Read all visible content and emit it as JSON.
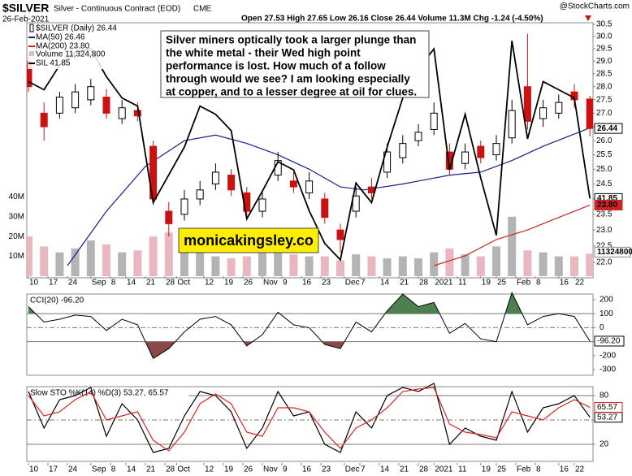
{
  "chart_data": [
    {
      "type": "candlestick",
      "title": "$SILVER",
      "subtitle": "Silver - Continuous Contract (EOD)",
      "exchange": "CME",
      "date": "26-Feb-2021",
      "quote": "Open 27.53  High 27.65  Low 26.16  Close 26.44  Volume 11.3M  Chg -1.24 (-4.50%)",
      "credit": "@StockCharts.com",
      "name": "$SILVER (Daily) 26.44",
      "last_label": "26.44",
      "log_scale": true,
      "up_color": "#000000",
      "down_color": "#cc1111",
      "x": [
        0,
        4,
        8,
        12,
        16,
        20,
        24,
        28,
        32,
        36,
        40,
        44,
        48,
        52,
        56,
        60,
        64,
        68,
        72,
        76,
        80,
        84,
        88,
        92,
        96,
        100,
        104,
        108,
        112,
        116,
        120,
        124,
        128,
        132,
        136,
        140,
        144
      ],
      "open": [
        29.0,
        27.0,
        27.0,
        27.2,
        27.5,
        27.6,
        26.8,
        27.1,
        25.8,
        23.6,
        23.5,
        24.0,
        24.5,
        24.8,
        24.2,
        23.6,
        24.8,
        24.6,
        24.2,
        24.0,
        23.0,
        23.6,
        24.4,
        24.9,
        25.4,
        26.0,
        26.4,
        25.6,
        25.2,
        25.8,
        25.5,
        26.1,
        28.0,
        26.8,
        27.0,
        27.8,
        27.53
      ],
      "high": [
        29.3,
        27.4,
        27.8,
        28.1,
        28.3,
        27.9,
        27.5,
        27.4,
        26.0,
        23.9,
        24.3,
        24.6,
        25.2,
        25.0,
        24.4,
        24.3,
        25.6,
        24.9,
        24.9,
        24.2,
        23.2,
        24.4,
        24.7,
        25.9,
        26.2,
        26.6,
        27.4,
        25.9,
        25.9,
        26.0,
        26.2,
        27.5,
        30.1,
        27.5,
        27.7,
        28.1,
        27.65
      ],
      "low": [
        27.8,
        26.0,
        26.8,
        27.0,
        27.3,
        26.8,
        26.6,
        26.7,
        23.8,
        22.8,
        23.3,
        23.8,
        24.3,
        24.1,
        23.4,
        23.4,
        24.6,
        24.2,
        24.0,
        23.2,
        22.3,
        23.4,
        24.0,
        24.7,
        25.2,
        25.8,
        26.2,
        24.8,
        25.0,
        25.2,
        25.3,
        25.9,
        26.4,
        26.5,
        26.8,
        27.2,
        26.16
      ],
      "close": [
        28.0,
        26.5,
        27.6,
        27.8,
        28.0,
        27.0,
        27.2,
        26.9,
        24.0,
        23.2,
        24.0,
        24.3,
        24.9,
        24.3,
        23.6,
        24.0,
        25.3,
        24.4,
        24.6,
        23.4,
        22.7,
        24.1,
        24.2,
        25.6,
        25.9,
        26.3,
        27.0,
        25.0,
        25.6,
        25.4,
        25.9,
        27.1,
        26.7,
        27.2,
        27.4,
        27.5,
        26.44
      ],
      "ylim": [
        22,
        30.5
      ],
      "yticks": [
        {
          "value": 22,
          "label": "22.0"
        },
        22.5,
        {
          "value": 23,
          "label": "23.0"
        },
        23.5,
        {
          "value": 24,
          "label": "24.0"
        },
        24.5,
        {
          "value": 25,
          "label": "25.0"
        },
        25.5,
        {
          "value": 26,
          "label": "26.0"
        },
        26.5,
        {
          "value": 27,
          "label": "27.0"
        },
        27.5,
        {
          "value": 28,
          "label": "28.0"
        },
        28.5,
        {
          "value": 29,
          "label": "29.0"
        },
        29.5,
        {
          "value": 30,
          "label": "30.0"
        },
        30.5
      ],
      "xticks": [
        {
          "value": 0,
          "label": "10"
        },
        {
          "value": 5,
          "label": "17"
        },
        {
          "value": 10,
          "label": "24"
        },
        {
          "value": 16,
          "label": "Sep"
        },
        {
          "value": 21,
          "label": "8"
        },
        {
          "value": 25,
          "label": "14"
        },
        {
          "value": 30,
          "label": "21"
        },
        {
          "value": 35,
          "label": "28"
        },
        {
          "value": 38,
          "label": "Oct"
        },
        {
          "value": 45,
          "label": "12"
        },
        {
          "value": 50,
          "label": "19"
        },
        {
          "value": 55,
          "label": "26"
        },
        {
          "value": 60,
          "label": "Nov"
        },
        {
          "value": 65,
          "label": "9"
        },
        {
          "value": 70,
          "label": "16"
        },
        {
          "value": 75,
          "label": "23"
        },
        {
          "value": 81,
          "label": "Dec"
        },
        {
          "value": 85,
          "label": "7"
        },
        {
          "value": 90,
          "label": "14"
        },
        {
          "value": 95,
          "label": "21"
        },
        {
          "value": 100,
          "label": "28"
        },
        {
          "value": 104,
          "label": "2021"
        },
        {
          "value": 110,
          "label": "11"
        },
        {
          "value": 116,
          "label": "19"
        },
        {
          "value": 120,
          "label": "25"
        },
        {
          "value": 125,
          "label": "Feb"
        },
        {
          "value": 130,
          "label": "8"
        },
        {
          "value": 136,
          "label": "16"
        },
        {
          "value": 140,
          "label": "22"
        }
      ],
      "overlays": [
        {
          "name": "MA(50) 26.46",
          "color": "#1c1c8c",
          "x": [
            10,
            20,
            30,
            40,
            48,
            56,
            64,
            72,
            80,
            86,
            96,
            108,
            116,
            124,
            132,
            144
          ],
          "values": [
            21.9,
            23.6,
            25.1,
            26.0,
            26.2,
            25.9,
            25.5,
            25.0,
            24.4,
            24.3,
            24.5,
            24.8,
            24.9,
            25.3,
            25.8,
            26.46
          ]
        },
        {
          "name": "MA(200) 23.80",
          "color": "#cc2222",
          "last_label": "23.80",
          "x": [
            104,
            112,
            120,
            128,
            136,
            144
          ],
          "values": [
            21.9,
            22.2,
            22.7,
            23.0,
            23.4,
            23.8
          ]
        }
      ],
      "series": [
        {
          "name": "SIL 41.85",
          "color": "#000000",
          "axis": "y2",
          "last_label": "41.85",
          "values": [
            49.0,
            48.5,
            50.0,
            50.8,
            51.0,
            49.3,
            48.0,
            47.5,
            41.6,
            43.3,
            45.0,
            47.5,
            47.0,
            46.0,
            40.6,
            42.3,
            44.1,
            43.6,
            41.1,
            39.1,
            38.1,
            42.8,
            41.6,
            45.0,
            48.0,
            49.8,
            51.0,
            43.6,
            47.0,
            43.1,
            39.6,
            51.5,
            45.5,
            49.0,
            48.5,
            48.0,
            41.85
          ]
        }
      ],
      "y2lim": [
        37,
        52.5
      ],
      "volume": {
        "name": "Volume 11,324,800",
        "last_label": "11324800",
        "up_color": "#b4b4b4",
        "down_color": "#e9b7bf",
        "values": [
          20000000,
          15000000,
          12000000,
          14000000,
          18000000,
          16000000,
          12000000,
          13000000,
          20000000,
          22000000,
          15000000,
          12000000,
          10000000,
          9000000,
          10000000,
          12000000,
          14000000,
          11000000,
          10000000,
          10000000,
          8000000,
          11000000,
          10000000,
          9000000,
          10000000,
          9000000,
          12000000,
          14000000,
          11000000,
          10000000,
          15000000,
          30000000,
          13000000,
          12000000,
          10000000,
          10000000,
          11324800
        ],
        "ylim": [
          0,
          127000000
        ],
        "yticks": [
          {
            "value": 10000000,
            "label": "10M"
          },
          {
            "value": 20000000,
            "label": "20M"
          },
          {
            "value": 30000000,
            "label": "30M"
          },
          {
            "value": 40000000,
            "label": "40M"
          }
        ]
      },
      "annotation": [
        "Silver miners optically took a larger plunge than",
        "the white metal - their Wed high point",
        "performance is lost. How much of a follow",
        "through would we see? I am looking especially",
        "at copper, and to a lesser degree at oil for clues."
      ],
      "watermark": "monicakingsley.co"
    },
    {
      "type": "line",
      "title": "CCI(20) -96.20",
      "series": [
        {
          "name": "CCI(20)",
          "color": "#000000",
          "last_label": "-96.20",
          "values": [
            150,
            40,
            60,
            90,
            80,
            -20,
            60,
            20,
            -220,
            -150,
            -30,
            60,
            80,
            20,
            -130,
            -50,
            110,
            20,
            0,
            -120,
            -150,
            40,
            -30,
            120,
            240,
            150,
            180,
            -40,
            30,
            -80,
            -100,
            250,
            20,
            80,
            100,
            80,
            -96.2
          ]
        }
      ],
      "ylim": [
        -340,
        240
      ],
      "yticks": [
        200,
        100,
        0,
        -100,
        -200,
        -300
      ],
      "signal_levels": [
        100,
        -100
      ],
      "center_line": 0,
      "high_color": "#4f7f4f",
      "low_color": "#8a4848"
    },
    {
      "type": "line",
      "title": "Slow STO %K(14) %D(3) 53.27, 65.57",
      "series": [
        {
          "name": "%K",
          "color": "#000000",
          "last_label": "53.27",
          "values": [
            85,
            40,
            75,
            80,
            90,
            30,
            70,
            50,
            10,
            15,
            55,
            85,
            80,
            60,
            15,
            40,
            85,
            55,
            60,
            20,
            10,
            60,
            40,
            80,
            90,
            85,
            95,
            20,
            40,
            30,
            25,
            85,
            35,
            65,
            70,
            80,
            53.27
          ]
        },
        {
          "name": "%D",
          "color": "#dd2222",
          "last_label": "65.57",
          "values": [
            80,
            55,
            60,
            75,
            85,
            50,
            55,
            60,
            25,
            12,
            35,
            70,
            82,
            70,
            35,
            30,
            65,
            65,
            60,
            35,
            15,
            40,
            50,
            65,
            85,
            88,
            90,
            45,
            35,
            32,
            28,
            60,
            55,
            50,
            65,
            75,
            65.57
          ]
        }
      ],
      "ylim": [
        -1,
        91
      ],
      "yticks": [
        80,
        50,
        20
      ],
      "signal_levels": [
        80,
        20
      ],
      "center_line": 50
    }
  ]
}
